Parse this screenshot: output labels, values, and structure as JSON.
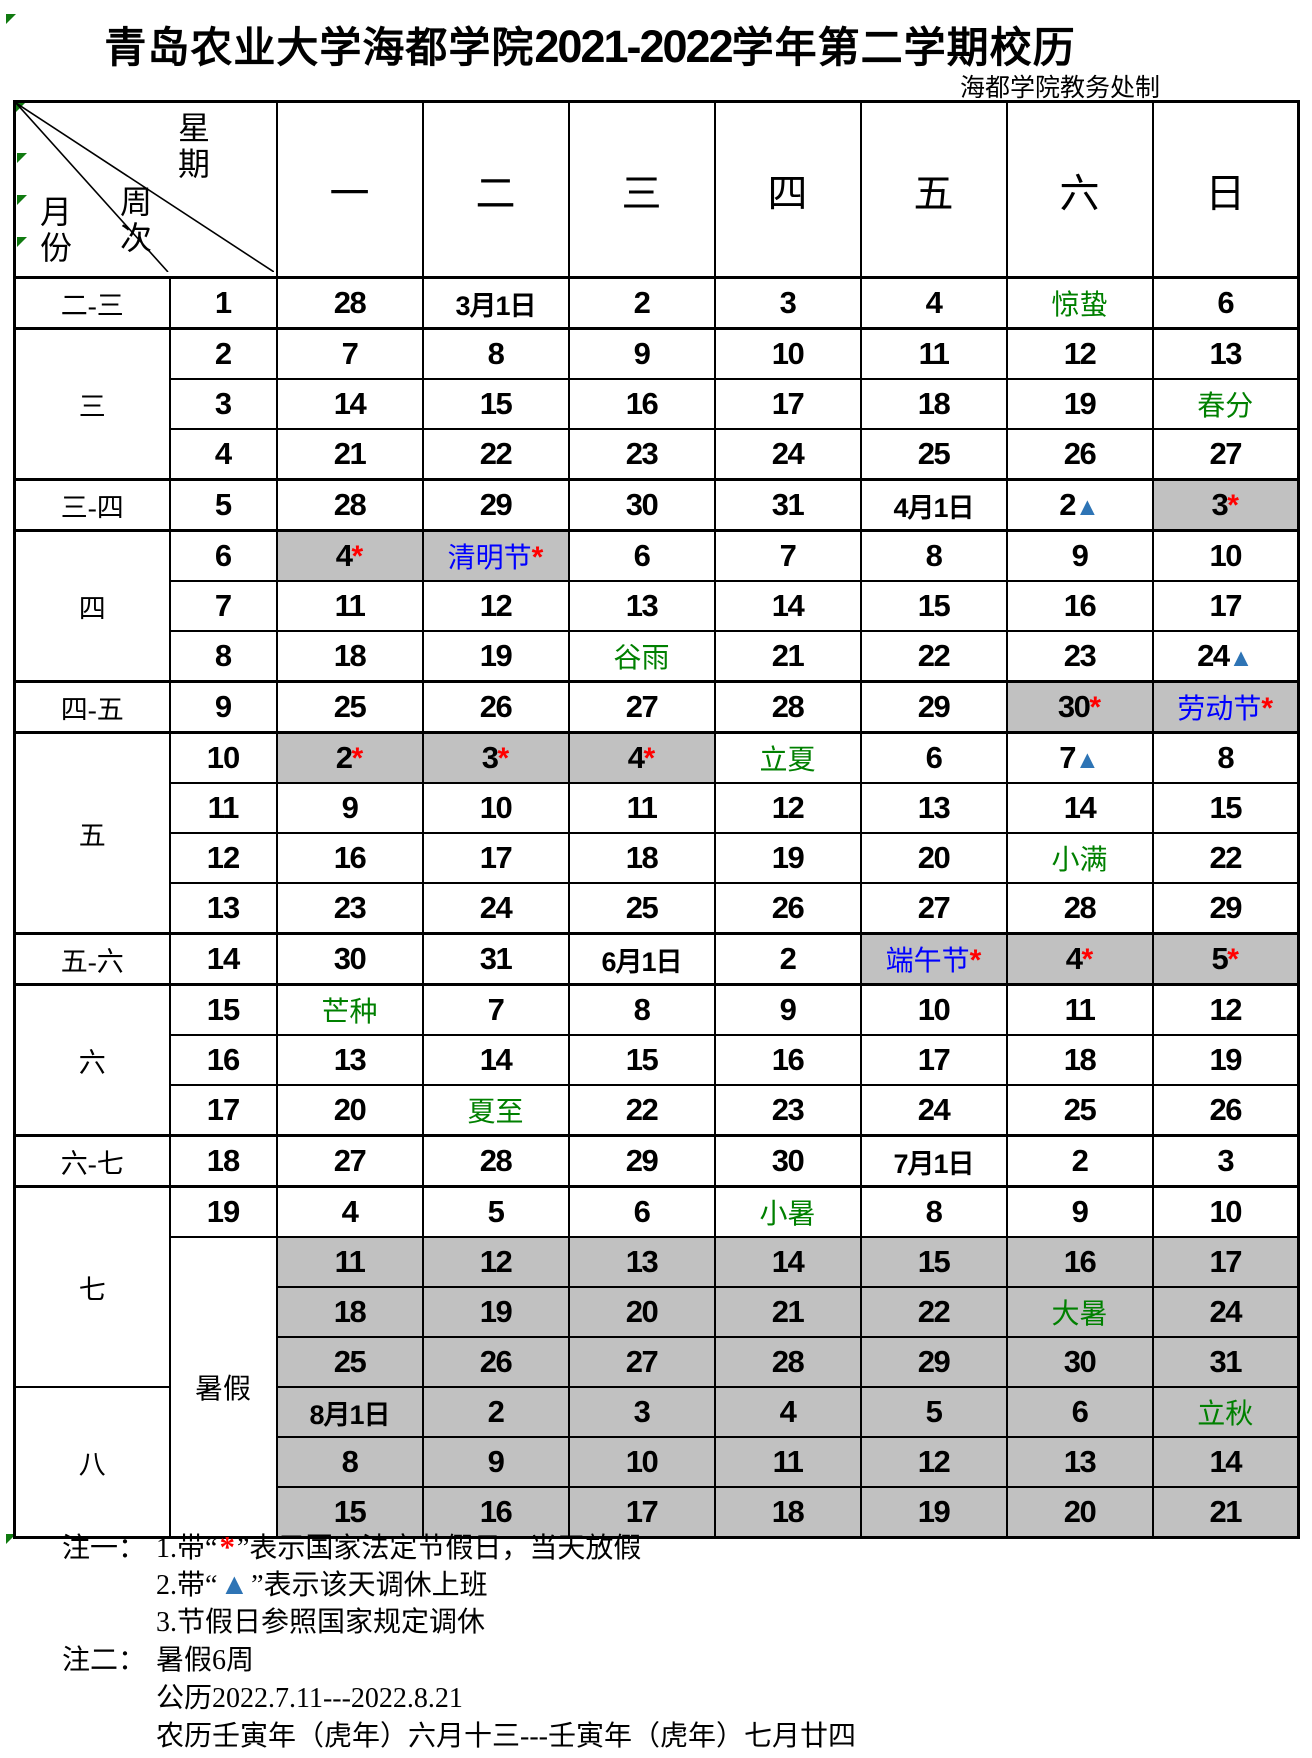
{
  "page": {
    "title_cn1": "青岛农业大学海都学院",
    "title_num": "2021-2022",
    "title_cn2": "学年第二学期校历",
    "subtitle": "海都学院教务处制"
  },
  "colors": {
    "term_green": "#008000",
    "holiday_blue": "#0000ff",
    "star_red": "#ff0000",
    "triangle_blue": "#2e74b5",
    "rest_gray": "#c1c1c1",
    "marker_green": "#107a10"
  },
  "header": {
    "corner_top": "星期",
    "corner_mid": "周次",
    "corner_bottom": "月份",
    "days": [
      "一",
      "二",
      "三",
      "四",
      "五",
      "六",
      "日"
    ]
  },
  "weeks": [
    {
      "month": "二-三",
      "mspan": 1,
      "week": "1",
      "days": [
        {
          "t": "28"
        },
        {
          "t": "3月1日"
        },
        {
          "t": "2"
        },
        {
          "t": "3"
        },
        {
          "t": "4"
        },
        {
          "t": "惊蛰",
          "c": "term"
        },
        {
          "t": "6"
        }
      ]
    },
    {
      "month": "三",
      "mspan": 3,
      "week": "2",
      "days": [
        {
          "t": "7"
        },
        {
          "t": "8"
        },
        {
          "t": "9"
        },
        {
          "t": "10"
        },
        {
          "t": "11"
        },
        {
          "t": "12"
        },
        {
          "t": "13"
        }
      ]
    },
    {
      "week": "3",
      "days": [
        {
          "t": "14"
        },
        {
          "t": "15"
        },
        {
          "t": "16"
        },
        {
          "t": "17"
        },
        {
          "t": "18"
        },
        {
          "t": "19"
        },
        {
          "t": "春分",
          "c": "term"
        }
      ]
    },
    {
      "week": "4",
      "days": [
        {
          "t": "21"
        },
        {
          "t": "22"
        },
        {
          "t": "23"
        },
        {
          "t": "24"
        },
        {
          "t": "25"
        },
        {
          "t": "26"
        },
        {
          "t": "27"
        }
      ]
    },
    {
      "month": "三-四",
      "mspan": 1,
      "week": "5",
      "days": [
        {
          "t": "28"
        },
        {
          "t": "29"
        },
        {
          "t": "30"
        },
        {
          "t": "31"
        },
        {
          "t": "4月1日"
        },
        {
          "t": "2",
          "m": "tri"
        },
        {
          "t": "3",
          "m": "star",
          "g": 1
        }
      ]
    },
    {
      "month": "四",
      "mspan": 3,
      "week": "6",
      "days": [
        {
          "t": "4",
          "m": "star",
          "g": 1
        },
        {
          "t": "清明节",
          "c": "holiday",
          "m": "star",
          "g": 1
        },
        {
          "t": "6"
        },
        {
          "t": "7"
        },
        {
          "t": "8"
        },
        {
          "t": "9"
        },
        {
          "t": "10"
        }
      ]
    },
    {
      "week": "7",
      "days": [
        {
          "t": "11"
        },
        {
          "t": "12"
        },
        {
          "t": "13"
        },
        {
          "t": "14"
        },
        {
          "t": "15"
        },
        {
          "t": "16"
        },
        {
          "t": "17"
        }
      ]
    },
    {
      "week": "8",
      "days": [
        {
          "t": "18"
        },
        {
          "t": "19"
        },
        {
          "t": "谷雨",
          "c": "term"
        },
        {
          "t": "21"
        },
        {
          "t": "22"
        },
        {
          "t": "23"
        },
        {
          "t": "24",
          "m": "tri"
        }
      ]
    },
    {
      "month": "四-五",
      "mspan": 1,
      "week": "9",
      "days": [
        {
          "t": "25"
        },
        {
          "t": "26"
        },
        {
          "t": "27"
        },
        {
          "t": "28"
        },
        {
          "t": "29"
        },
        {
          "t": "30",
          "m": "star",
          "g": 1
        },
        {
          "t": "劳动节",
          "c": "holiday",
          "m": "star",
          "g": 1
        }
      ]
    },
    {
      "month": "五",
      "mspan": 4,
      "week": "10",
      "days": [
        {
          "t": "2",
          "m": "star",
          "g": 1
        },
        {
          "t": "3",
          "m": "star",
          "g": 1
        },
        {
          "t": "4",
          "m": "star",
          "g": 1
        },
        {
          "t": "立夏",
          "c": "term"
        },
        {
          "t": "6"
        },
        {
          "t": "7",
          "m": "tri"
        },
        {
          "t": "8"
        }
      ]
    },
    {
      "week": "11",
      "days": [
        {
          "t": "9"
        },
        {
          "t": "10"
        },
        {
          "t": "11"
        },
        {
          "t": "12"
        },
        {
          "t": "13"
        },
        {
          "t": "14"
        },
        {
          "t": "15"
        }
      ]
    },
    {
      "week": "12",
      "days": [
        {
          "t": "16"
        },
        {
          "t": "17"
        },
        {
          "t": "18"
        },
        {
          "t": "19"
        },
        {
          "t": "20"
        },
        {
          "t": "小满",
          "c": "term"
        },
        {
          "t": "22"
        }
      ]
    },
    {
      "week": "13",
      "days": [
        {
          "t": "23"
        },
        {
          "t": "24"
        },
        {
          "t": "25"
        },
        {
          "t": "26"
        },
        {
          "t": "27"
        },
        {
          "t": "28"
        },
        {
          "t": "29"
        }
      ]
    },
    {
      "month": "五-六",
      "mspan": 1,
      "week": "14",
      "days": [
        {
          "t": "30"
        },
        {
          "t": "31"
        },
        {
          "t": "6月1日"
        },
        {
          "t": "2"
        },
        {
          "t": "端午节",
          "c": "holiday",
          "m": "star",
          "g": 1
        },
        {
          "t": "4",
          "m": "star",
          "g": 1
        },
        {
          "t": "5",
          "m": "star",
          "g": 1
        }
      ]
    },
    {
      "month": "六",
      "mspan": 3,
      "week": "15",
      "days": [
        {
          "t": "芒种",
          "c": "term"
        },
        {
          "t": "7"
        },
        {
          "t": "8"
        },
        {
          "t": "9"
        },
        {
          "t": "10"
        },
        {
          "t": "11"
        },
        {
          "t": "12"
        }
      ]
    },
    {
      "week": "16",
      "days": [
        {
          "t": "13"
        },
        {
          "t": "14"
        },
        {
          "t": "15"
        },
        {
          "t": "16"
        },
        {
          "t": "17"
        },
        {
          "t": "18"
        },
        {
          "t": "19"
        }
      ]
    },
    {
      "week": "17",
      "days": [
        {
          "t": "20"
        },
        {
          "t": "夏至",
          "c": "term"
        },
        {
          "t": "22"
        },
        {
          "t": "23"
        },
        {
          "t": "24"
        },
        {
          "t": "25"
        },
        {
          "t": "26"
        }
      ]
    },
    {
      "month": "六-七",
      "mspan": 1,
      "week": "18",
      "days": [
        {
          "t": "27"
        },
        {
          "t": "28"
        },
        {
          "t": "29"
        },
        {
          "t": "30"
        },
        {
          "t": "7月1日"
        },
        {
          "t": "2"
        },
        {
          "t": "3"
        }
      ]
    },
    {
      "month": "七",
      "mspan": 4,
      "week": "19",
      "days": [
        {
          "t": "4"
        },
        {
          "t": "5"
        },
        {
          "t": "6"
        },
        {
          "t": "小暑",
          "c": "term"
        },
        {
          "t": "8"
        },
        {
          "t": "9"
        },
        {
          "t": "10"
        }
      ]
    },
    {
      "week": "暑假",
      "wspan": 6,
      "days": [
        {
          "t": "11",
          "g": 1
        },
        {
          "t": "12",
          "g": 1
        },
        {
          "t": "13",
          "g": 1
        },
        {
          "t": "14",
          "g": 1
        },
        {
          "t": "15",
          "g": 1
        },
        {
          "t": "16",
          "g": 1
        },
        {
          "t": "17",
          "g": 1
        }
      ]
    },
    {
      "days": [
        {
          "t": "18",
          "g": 1
        },
        {
          "t": "19",
          "g": 1
        },
        {
          "t": "20",
          "g": 1
        },
        {
          "t": "21",
          "g": 1
        },
        {
          "t": "22",
          "g": 1
        },
        {
          "t": "大暑",
          "c": "term",
          "g": 1
        },
        {
          "t": "24",
          "g": 1
        }
      ]
    },
    {
      "days": [
        {
          "t": "25",
          "g": 1
        },
        {
          "t": "26",
          "g": 1
        },
        {
          "t": "27",
          "g": 1
        },
        {
          "t": "28",
          "g": 1
        },
        {
          "t": "29",
          "g": 1
        },
        {
          "t": "30",
          "g": 1
        },
        {
          "t": "31",
          "g": 1
        }
      ]
    },
    {
      "month": "八",
      "mspan": 3,
      "days": [
        {
          "t": "8月1日",
          "g": 1
        },
        {
          "t": "2",
          "g": 1
        },
        {
          "t": "3",
          "g": 1
        },
        {
          "t": "4",
          "g": 1
        },
        {
          "t": "5",
          "g": 1
        },
        {
          "t": "6",
          "g": 1
        },
        {
          "t": "立秋",
          "c": "term",
          "g": 1
        }
      ]
    },
    {
      "days": [
        {
          "t": "8",
          "g": 1
        },
        {
          "t": "9",
          "g": 1
        },
        {
          "t": "10",
          "g": 1
        },
        {
          "t": "11",
          "g": 1
        },
        {
          "t": "12",
          "g": 1
        },
        {
          "t": "13",
          "g": 1
        },
        {
          "t": "14",
          "g": 1
        }
      ]
    },
    {
      "days": [
        {
          "t": "15",
          "g": 1
        },
        {
          "t": "16",
          "g": 1
        },
        {
          "t": "17",
          "g": 1
        },
        {
          "t": "18",
          "g": 1
        },
        {
          "t": "19",
          "g": 1
        },
        {
          "t": "20",
          "g": 1
        },
        {
          "t": "21",
          "g": 1
        }
      ]
    }
  ],
  "notes": {
    "label1": "注一：",
    "l1_pre": "1.带“",
    "l1_mark": "*",
    "l1_post": "”表示国家法定节假日，当天放假",
    "l2_pre": "2.带“",
    "l2_mark": "▲",
    "l2_post": "”表示该天调休上班",
    "l3": "3.节假日参照国家规定调休",
    "label2": "注二：",
    "l4": "暑假6周",
    "l5": "公历2022.7.11---2022.8.21",
    "l6": "农历壬寅年（虎年）六月十三---壬寅年（虎年）七月廿四"
  }
}
